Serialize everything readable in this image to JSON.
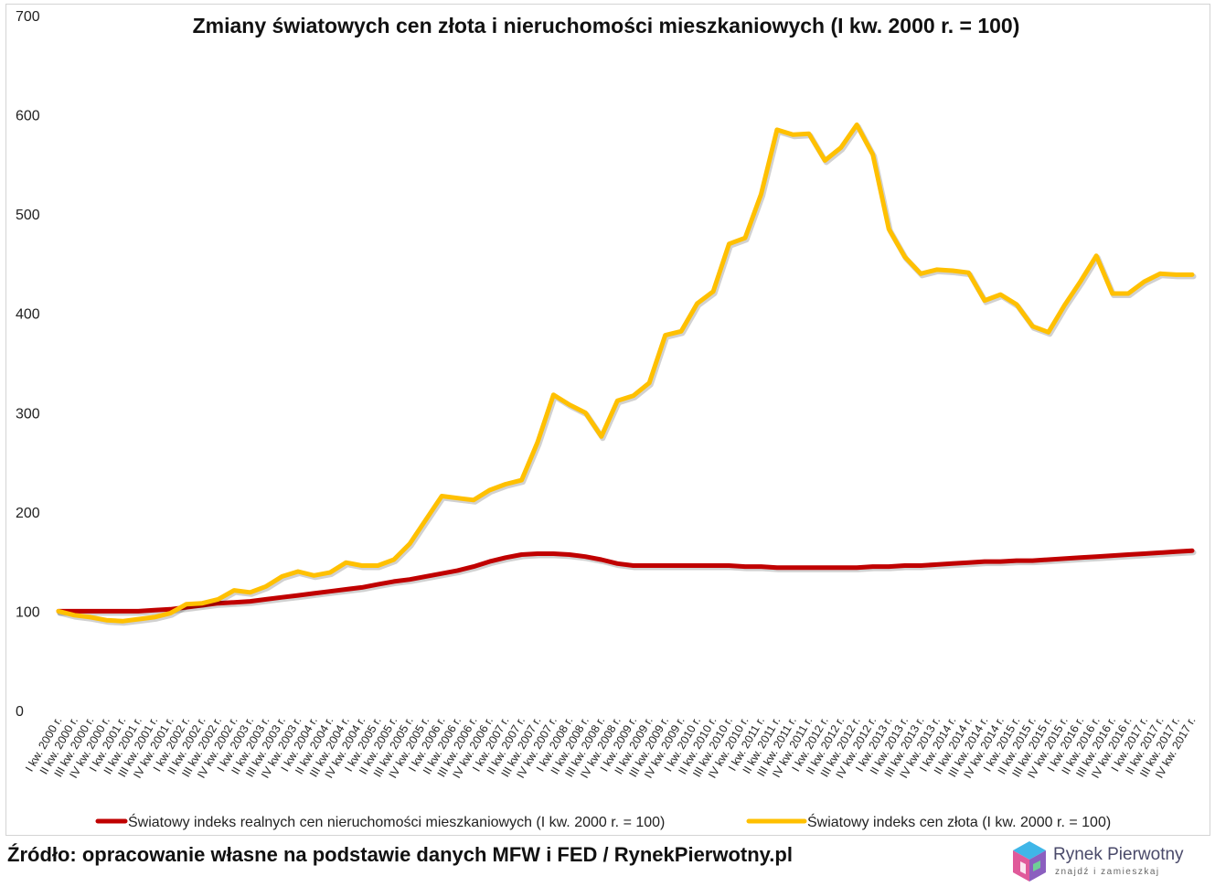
{
  "chart_data": {
    "type": "line",
    "title": "Zmiany światowych cen złota i nieruchomości mieszkaniowych (I kw. 2000 r. = 100)",
    "xlabel": "",
    "ylabel": "",
    "ylim": [
      0,
      700
    ],
    "yticks": [
      0,
      100,
      200,
      300,
      400,
      500,
      600,
      700
    ],
    "grid": false,
    "legend": "bottom",
    "categories": [
      "I kw. 2000 r.",
      "II kw. 2000 r.",
      "III kw. 2000 r.",
      "IV kw. 2000 r.",
      "I kw. 2001 r.",
      "II kw. 2001 r.",
      "III kw. 2001 r.",
      "IV kw. 2001 r.",
      "I kw. 2002 r.",
      "II kw. 2002 r.",
      "III kw. 2002 r.",
      "IV kw. 2002 r.",
      "I kw. 2003 r.",
      "II kw. 2003 r.",
      "III kw. 2003 r.",
      "IV kw. 2003 r.",
      "I kw. 2004 r.",
      "II kw. 2004 r.",
      "III kw. 2004 r.",
      "IV kw. 2004 r.",
      "I kw. 2005 r.",
      "II kw. 2005 r.",
      "III kw. 2005 r.",
      "IV kw. 2005 r.",
      "I kw. 2006 r.",
      "II kw. 2006 r.",
      "III kw. 2006 r.",
      "IV kw. 2006 r.",
      "I kw. 2007 r.",
      "II kw. 2007 r.",
      "III kw. 2007 r.",
      "IV kw. 2007 r.",
      "I kw. 2008 r.",
      "II kw. 2008 r.",
      "III kw. 2008 r.",
      "IV kw. 2008 r.",
      "I kw. 2009 r.",
      "II kw. 2009 r.",
      "III kw. 2009 r.",
      "IV kw. 2009 r.",
      "I kw. 2010 r.",
      "II kw. 2010 r.",
      "III kw. 2010 r.",
      "IV kw. 2010 r.",
      "I kw. 2011 r.",
      "II kw. 2011 r.",
      "III kw. 2011 r.",
      "IV kw. 2011 r.",
      "I kw. 2012 r.",
      "II kw. 2012 r.",
      "III kw. 2012 r.",
      "IV kw. 2012 r.",
      "I kw. 2013 r.",
      "II kw. 2013 r.",
      "III kw. 2013 r.",
      "IV kw. 2013 r.",
      "I kw. 2014 r.",
      "II kw. 2014 r.",
      "III kw. 2014 r.",
      "IV kw. 2014 r.",
      "I kw. 2015 r.",
      "II kw. 2015 r.",
      "III kw. 2015 r.",
      "IV kw. 2015 r.",
      "I kw. 2016 r.",
      "II kw. 2016 r.",
      "III kw. 2016 r.",
      "IV kw. 2016 r.",
      "I kw. 2017 r.",
      "II kw. 2017 r.",
      "III kw. 2017 r.",
      "IV kw. 2017 r."
    ],
    "series": [
      {
        "name": "Światowy indeks realnych cen nieruchomości mieszkaniowych (I kw. 2000 r. = 100)",
        "color": "#c00000",
        "values": [
          100,
          100,
          100,
          100,
          100,
          100,
          101,
          102,
          104,
          106,
          108,
          109,
          110,
          112,
          114,
          116,
          118,
          120,
          122,
          124,
          127,
          130,
          132,
          135,
          138,
          141,
          145,
          150,
          154,
          157,
          158,
          158,
          157,
          155,
          152,
          148,
          146,
          146,
          146,
          146,
          146,
          146,
          146,
          145,
          145,
          144,
          144,
          144,
          144,
          144,
          144,
          145,
          145,
          146,
          146,
          147,
          148,
          149,
          150,
          150,
          151,
          151,
          152,
          153,
          154,
          155,
          156,
          157,
          158,
          159,
          160,
          161
        ]
      },
      {
        "name": "Światowy indeks cen złota (I kw. 2000 r. = 100)",
        "color": "#ffc000",
        "values": [
          100,
          96,
          94,
          91,
          90,
          92,
          94,
          98,
          107,
          108,
          112,
          121,
          119,
          125,
          135,
          140,
          136,
          139,
          149,
          146,
          146,
          152,
          168,
          192,
          216,
          214,
          212,
          222,
          228,
          232,
          270,
          318,
          308,
          300,
          276,
          312,
          317,
          330,
          378,
          382,
          410,
          422,
          470,
          476,
          520,
          585,
          580,
          581,
          554,
          567,
          590,
          560,
          485,
          457,
          440,
          444,
          443,
          441,
          413,
          419,
          409,
          387,
          381,
          408,
          432,
          458,
          420,
          420,
          432,
          440,
          439,
          439
        ]
      }
    ],
    "source": "Źródło: opracowanie własne na podstawie danych MFW i FED / RynekPierwotny.pl"
  },
  "logo": {
    "name": "Rynek Pierwotny",
    "tagline": "znajdź i zamieszkaj",
    "colors": [
      "#e05a9a",
      "#3fb6e8",
      "#8b5fbf",
      "#6fcf97"
    ]
  }
}
